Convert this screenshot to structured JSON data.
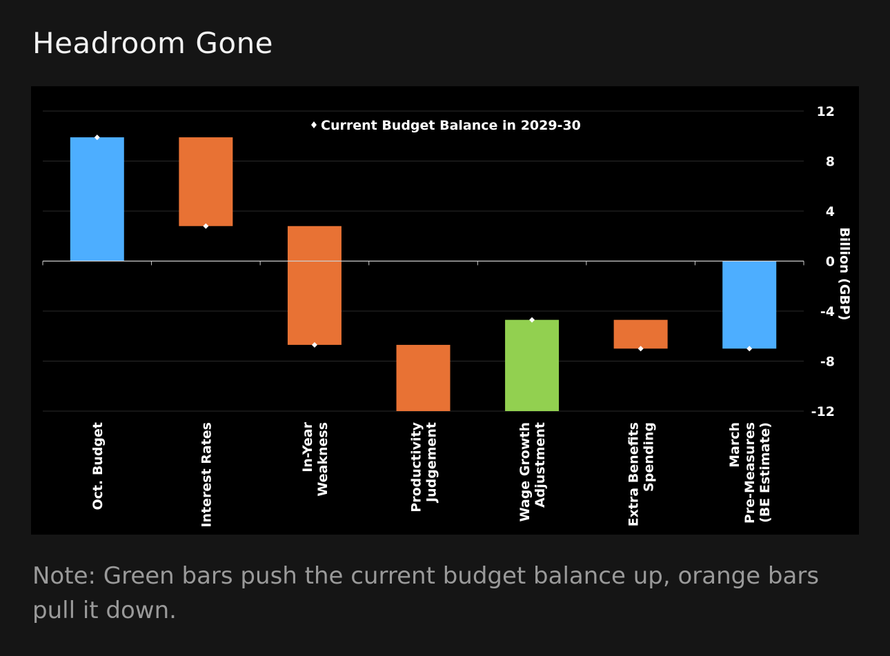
{
  "title": "Headroom Gone",
  "note": "Note: Green bars push the current budget balance up, orange bars pull it down.",
  "chart_data": {
    "type": "bar",
    "subtype": "waterfall",
    "title": "Headroom Gone",
    "legend": {
      "label": "Current Budget Balance in 2029-30",
      "placement": "top-center"
    },
    "ylabel": "Billion (GBP)",
    "xlabel": "",
    "ylim": [
      -12,
      12
    ],
    "yticks": [
      12,
      8,
      4,
      0,
      -4,
      -8,
      -12
    ],
    "ytick_labels": [
      "12",
      "8",
      "4",
      "0",
      "-4",
      "-8",
      "-12"
    ],
    "grid": true,
    "categories": [
      [
        "Oct. Budget"
      ],
      [
        "Interest Rates"
      ],
      [
        "In-Year",
        "Weakness"
      ],
      [
        "Productivity",
        "Judgement"
      ],
      [
        "Wage Growth",
        "Adjustment"
      ],
      [
        "Extra Benefits",
        "Spending"
      ],
      [
        "March",
        "Pre-Measures",
        "(BE Estimate)"
      ]
    ],
    "bars": [
      {
        "start": 0,
        "end": 9.9,
        "kind": "total"
      },
      {
        "start": 9.9,
        "end": 2.8,
        "kind": "decrease"
      },
      {
        "start": 2.8,
        "end": -6.7,
        "kind": "decrease"
      },
      {
        "start": -6.7,
        "end": -12,
        "kind": "decrease"
      },
      {
        "start": -12,
        "end": -4.7,
        "kind": "increase"
      },
      {
        "start": -4.7,
        "end": -7.0,
        "kind": "decrease"
      },
      {
        "start": 0,
        "end": -7.0,
        "kind": "total"
      }
    ],
    "balance_points": [
      9.9,
      2.8,
      -6.7,
      null,
      -4.7,
      -7.0,
      -7.0
    ],
    "colors": {
      "total": "#4daeff",
      "decrease": "#e87234",
      "increase": "#92d050",
      "point": "#ffffff",
      "grid": "#2a2a2a",
      "axis": "#cfcfcf"
    }
  }
}
